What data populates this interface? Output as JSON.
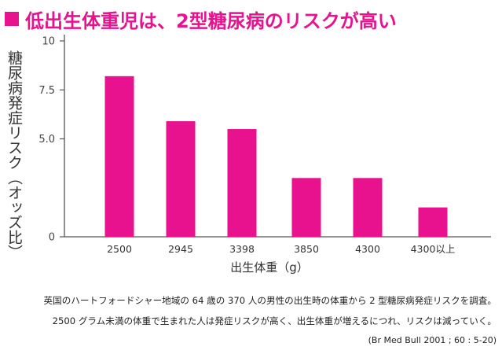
{
  "title": "低出生体重児は、2型糖尿病のリスクが高い",
  "colors": {
    "accent": "#e8118e",
    "axis": "#555555",
    "text": "#333333"
  },
  "chart_data": {
    "type": "bar",
    "categories": [
      "2500",
      "2945",
      "3398",
      "3850",
      "4300",
      "4300以上"
    ],
    "values": [
      8.2,
      5.9,
      5.5,
      3.0,
      3.0,
      1.5
    ],
    "ylabel": "糖尿病発症リスク（オッズ比）",
    "xlabel": "出生体重（g）",
    "ylim": [
      0,
      10
    ],
    "yticks": [
      0,
      5.0,
      7.5,
      10
    ],
    "ytick_labels": [
      "0",
      "5.0",
      "7.5",
      "10"
    ],
    "grid": false,
    "legend": "none"
  },
  "caption": {
    "line1": "英国のハートフォードシャー地域の 64 歳の 370 人の男性の出生時の体重から 2 型糖尿病発症リスクを調査。",
    "line2": "2500 グラム未満の体重で生まれた人は発症リスクが高く、出生体重が増えるにつれ、リスクは減っていく。",
    "source": "(Br Med Bull 2001 ; 60 : 5-20)"
  }
}
